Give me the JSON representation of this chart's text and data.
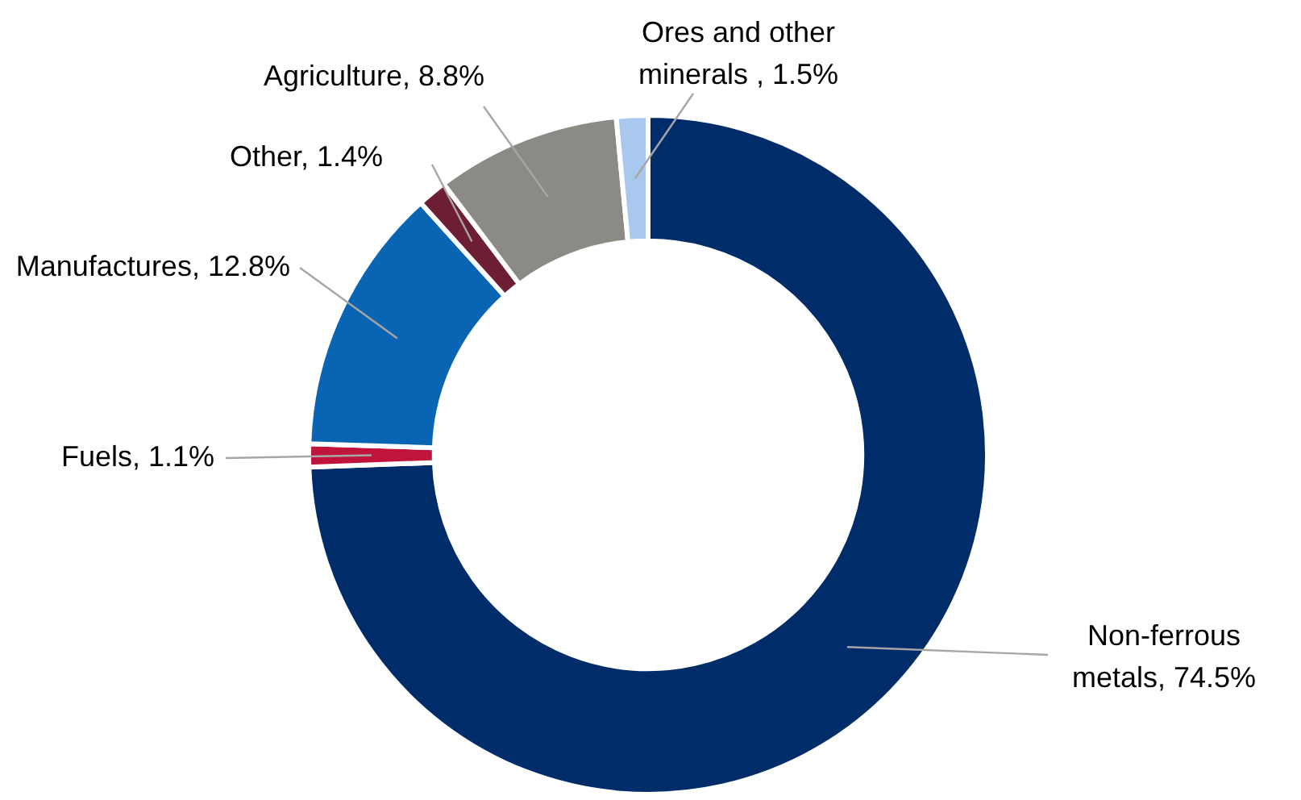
{
  "chart_data": {
    "type": "donut",
    "categories": [
      "Non-ferrous metals",
      "Fuels",
      "Manufactures",
      "Other",
      "Agriculture",
      "Ores and other minerals "
    ],
    "values": [
      74.5,
      1.1,
      12.8,
      1.4,
      8.8,
      1.5
    ],
    "colors": [
      "#002d6a",
      "#c0143c",
      "#0a64b4",
      "#6e1e32",
      "#8c8a84",
      "#a9c8ee"
    ],
    "value_labels": [
      "74.5%",
      "1.1%",
      "12.8%",
      "1.4%",
      "8.8%",
      "1.5%"
    ],
    "legend": false
  }
}
